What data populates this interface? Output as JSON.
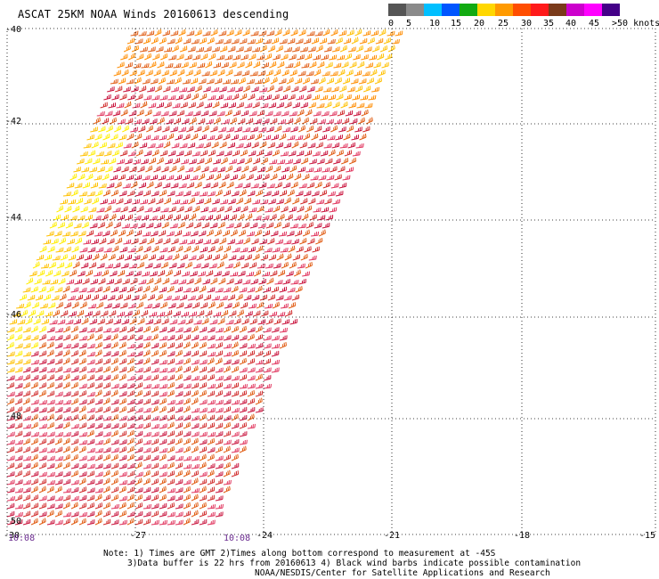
{
  "title": "ASCAT 25KM NOAA Winds 20160613 descending",
  "colorbar": {
    "colors": [
      "#555555",
      "#8a8a8a",
      "#00bfff",
      "#0055ff",
      "#11aa11",
      "#ffd700",
      "#ff9a00",
      "#ff4d00",
      "#ff1a1a",
      "#7a3a1a",
      "#cc00cc",
      "#ff00ff",
      "#440088"
    ],
    "labels": [
      "0",
      "5",
      "10",
      "15",
      "20",
      "25",
      "30",
      "35",
      "40",
      "45",
      ">50 knots"
    ]
  },
  "axes": {
    "lat_labels": [
      "-40",
      "-42",
      "-44",
      "-46",
      "-48",
      "-50"
    ],
    "lon_labels": [
      "-30",
      "-27",
      "-24",
      "-21",
      "-18",
      "-15"
    ]
  },
  "swath": {
    "barb_colors": [
      "#ffee00",
      "#ffc000",
      "#ff8c00",
      "#e05a10",
      "#d02a2a",
      "#c8103a",
      "#e0305a"
    ]
  },
  "times": [
    "10:08",
    "10:08"
  ],
  "notes": [
    "Note: 1) Times are GMT 2)Times along bottom correspond to measurement at -45S",
    "3)Data buffer is 22 hrs from 20160613 4) Black wind barbs indicate possible contamination",
    "NOAA/NESDIS/Center for Satellite Applications and Research"
  ]
}
